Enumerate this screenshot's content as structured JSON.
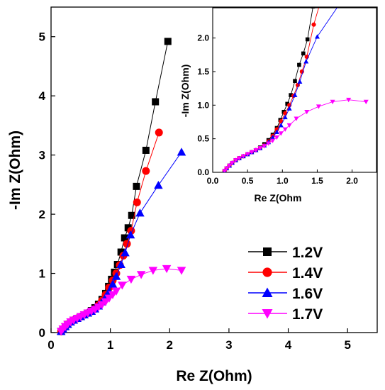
{
  "chart_data": [
    {
      "type": "scatter",
      "xlabel": "Re Z(Ohm)",
      "ylabel": "-Im Z(Ohm)",
      "xlim": [
        0,
        5.5
      ],
      "ylim": [
        0,
        5.5
      ],
      "xticks": [
        0,
        1,
        2,
        3,
        4,
        5
      ],
      "yticks": [
        0,
        1,
        2,
        3,
        4,
        5
      ],
      "xtick_labels": [
        "0",
        "1",
        "2",
        "3",
        "4",
        "5"
      ],
      "ytick_labels": [
        "0",
        "1",
        "2",
        "3",
        "4",
        "5"
      ],
      "legend": "lower-right",
      "series": [
        {
          "name": "1.2V",
          "color": "#000000",
          "marker": "square",
          "x": [
            0.17,
            0.2,
            0.24,
            0.28,
            0.33,
            0.38,
            0.44,
            0.5,
            0.56,
            0.62,
            0.68,
            0.74,
            0.8,
            0.86,
            0.92,
            0.97,
            1.02,
            1.07,
            1.12,
            1.18,
            1.24,
            1.3,
            1.36,
            1.44,
            1.6,
            1.76,
            1.97
          ],
          "y": [
            0.02,
            0.06,
            0.1,
            0.14,
            0.18,
            0.21,
            0.24,
            0.27,
            0.3,
            0.33,
            0.37,
            0.42,
            0.48,
            0.56,
            0.66,
            0.78,
            0.9,
            1.02,
            1.15,
            1.36,
            1.6,
            1.77,
            1.98,
            2.47,
            3.08,
            3.9,
            4.92
          ]
        },
        {
          "name": "1.4V",
          "color": "#ff0000",
          "marker": "circle",
          "x": [
            0.17,
            0.2,
            0.24,
            0.28,
            0.33,
            0.38,
            0.44,
            0.5,
            0.56,
            0.62,
            0.68,
            0.74,
            0.8,
            0.86,
            0.92,
            0.98,
            1.04,
            1.1,
            1.16,
            1.22,
            1.28,
            1.35,
            1.45,
            1.6,
            1.82
          ],
          "y": [
            0.02,
            0.06,
            0.1,
            0.14,
            0.18,
            0.21,
            0.24,
            0.27,
            0.3,
            0.33,
            0.36,
            0.4,
            0.46,
            0.54,
            0.64,
            0.76,
            0.88,
            1.0,
            1.14,
            1.3,
            1.5,
            1.72,
            2.2,
            2.73,
            3.38
          ]
        },
        {
          "name": "1.6V",
          "color": "#0000ff",
          "marker": "triangle-up",
          "x": [
            0.17,
            0.2,
            0.24,
            0.28,
            0.33,
            0.38,
            0.44,
            0.5,
            0.56,
            0.62,
            0.68,
            0.74,
            0.8,
            0.86,
            0.92,
            0.98,
            1.04,
            1.1,
            1.18,
            1.25,
            1.34,
            1.5,
            1.81,
            2.2
          ],
          "y": [
            0.02,
            0.06,
            0.1,
            0.14,
            0.18,
            0.21,
            0.24,
            0.27,
            0.3,
            0.33,
            0.36,
            0.4,
            0.45,
            0.52,
            0.6,
            0.7,
            0.82,
            0.95,
            1.15,
            1.35,
            1.65,
            2.02,
            2.49,
            3.05
          ]
        },
        {
          "name": "1.7V",
          "color": "#ff00ff",
          "marker": "triangle-down",
          "x": [
            0.17,
            0.2,
            0.24,
            0.28,
            0.33,
            0.38,
            0.44,
            0.5,
            0.56,
            0.62,
            0.68,
            0.74,
            0.8,
            0.86,
            0.92,
            0.98,
            1.04,
            1.1,
            1.2,
            1.35,
            1.52,
            1.72,
            1.95,
            2.2
          ],
          "y": [
            0.02,
            0.06,
            0.1,
            0.14,
            0.18,
            0.21,
            0.24,
            0.27,
            0.3,
            0.33,
            0.36,
            0.39,
            0.43,
            0.47,
            0.52,
            0.58,
            0.64,
            0.7,
            0.8,
            0.9,
            0.98,
            1.05,
            1.08,
            1.05
          ]
        }
      ]
    },
    {
      "type": "scatter",
      "xlabel": "Re Z(Ohm",
      "ylabel": "-Im Z(Ohm)",
      "xlim": [
        0,
        2.35
      ],
      "ylim": [
        0,
        2.45
      ],
      "xticks": [
        0,
        0.5,
        1,
        1.5,
        2
      ],
      "yticks": [
        0,
        0.5,
        1,
        1.5,
        2
      ],
      "xtick_labels": [
        "0.0",
        "0.5",
        "1.0",
        "1.5",
        "2.0"
      ],
      "ytick_labels": [
        "0.0",
        "0.5",
        "1.0",
        "1.5",
        "2.0"
      ],
      "series_source": "same four series as the main panel"
    }
  ]
}
